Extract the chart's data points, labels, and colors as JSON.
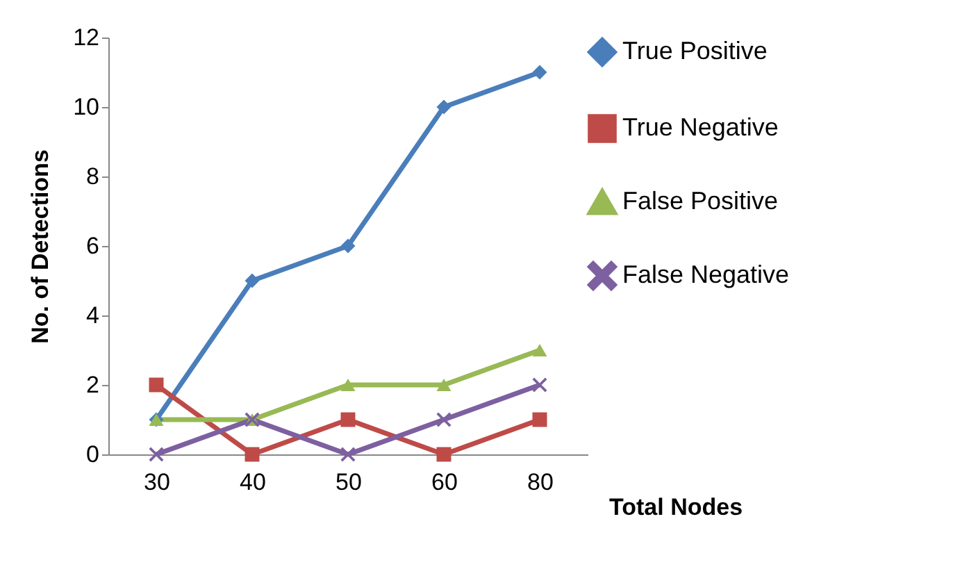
{
  "chart_data": {
    "type": "line",
    "xlabel": "Total Nodes",
    "ylabel": "No. of Detections",
    "categories": [
      "30",
      "40",
      "50",
      "60",
      "80"
    ],
    "series": [
      {
        "name": "True Positive",
        "color": "#4a7ebb",
        "marker": "diamond",
        "values": [
          1,
          5,
          6,
          10,
          11
        ]
      },
      {
        "name": "True Negative",
        "color": "#be4b48",
        "marker": "square",
        "values": [
          2,
          0,
          1,
          0,
          1
        ]
      },
      {
        "name": "False Positive",
        "color": "#98b954",
        "marker": "triangle",
        "values": [
          1,
          1,
          2,
          2,
          3
        ]
      },
      {
        "name": "False Negative",
        "color": "#7d60a0",
        "marker": "cross",
        "values": [
          0,
          1,
          0,
          1,
          2
        ]
      }
    ],
    "ylim": [
      0,
      12
    ],
    "yticks": [
      0,
      2,
      4,
      6,
      8,
      10,
      12
    ],
    "legend": "right",
    "line_style": "solid"
  }
}
